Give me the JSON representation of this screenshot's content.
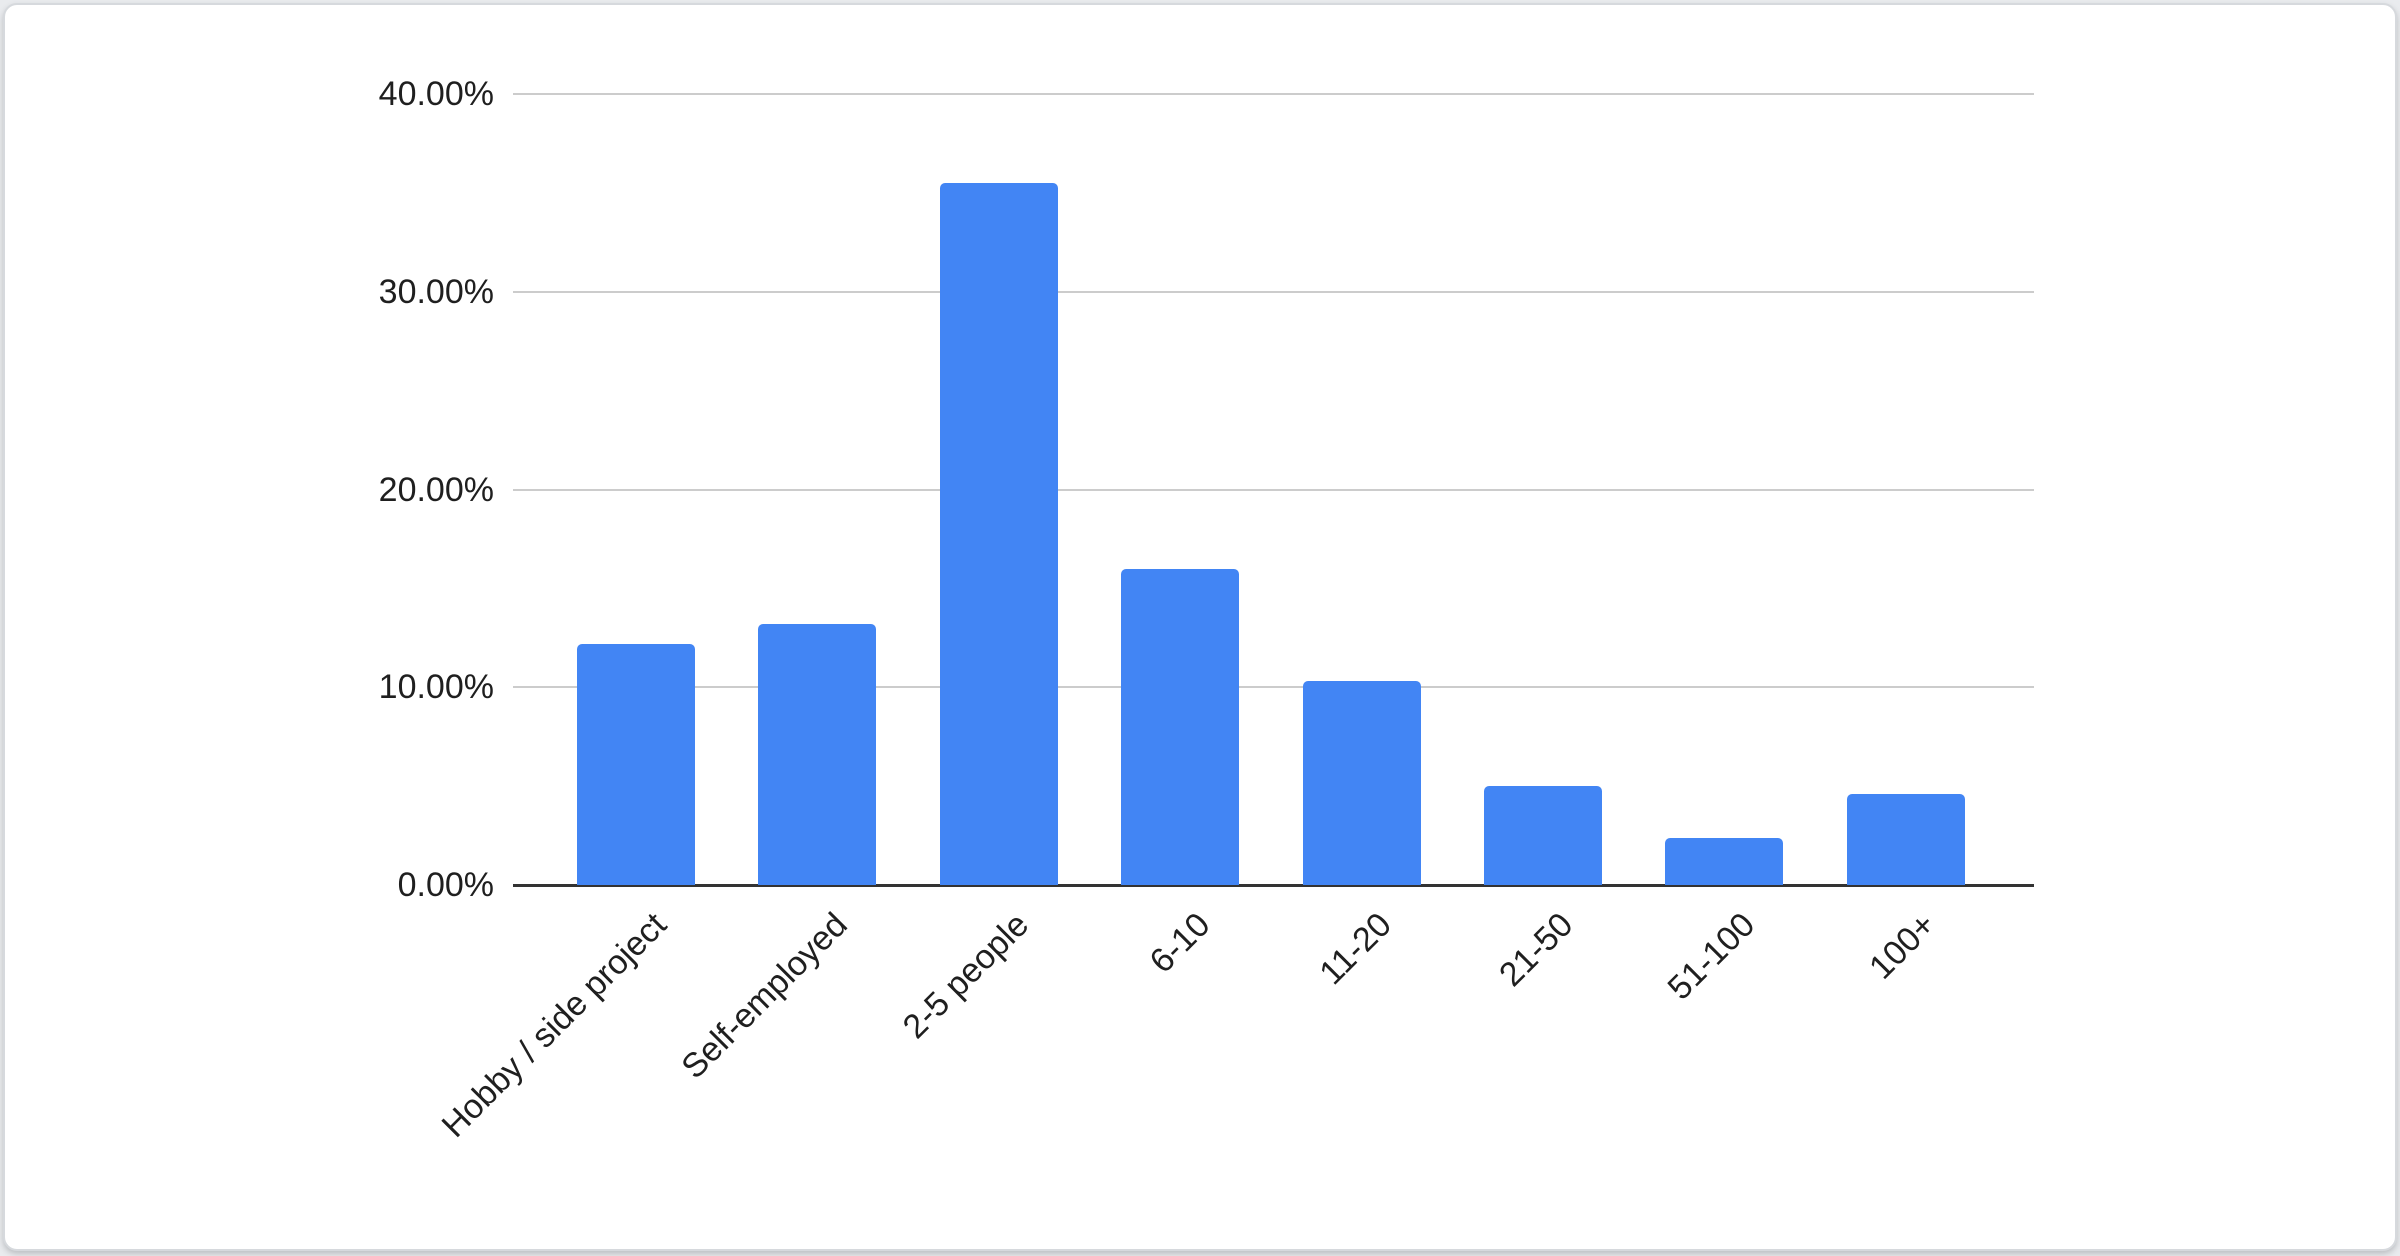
{
  "chart_data": {
    "type": "bar",
    "title": "",
    "xlabel": "",
    "ylabel": "",
    "categories": [
      "Hobby / side project",
      "Self-employed",
      "2-5 people",
      "6-10",
      "11-20",
      "21-50",
      "51-100",
      "100+"
    ],
    "values": [
      12.2,
      13.2,
      35.5,
      16.0,
      10.3,
      5.0,
      2.4,
      4.6
    ],
    "value_unit": "%",
    "ylim": [
      0,
      40
    ],
    "yticks": [
      {
        "value": 40,
        "label": "40.00%"
      },
      {
        "value": 30,
        "label": "30.00%"
      },
      {
        "value": 20,
        "label": "20.00%"
      },
      {
        "value": 10,
        "label": "10.00%"
      },
      {
        "value": 0,
        "label": "0.00%"
      }
    ],
    "grid": true,
    "legend": "none",
    "colors": {
      "bar": "#4285f4",
      "gridline": "#cccccc",
      "axis_line": "#333333",
      "label_text": "#1f1f1f",
      "card_background": "#ffffff",
      "card_border": "#d6d9dd"
    }
  }
}
